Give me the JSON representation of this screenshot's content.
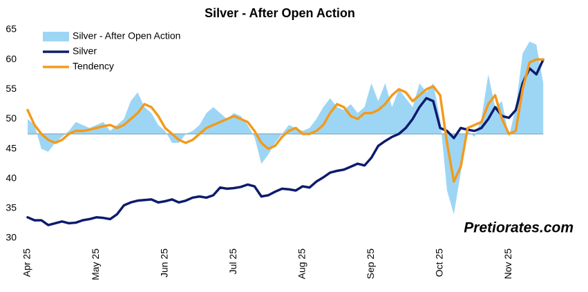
{
  "chart_data": {
    "type": "line",
    "title": "Silver - After Open Action",
    "annotation": "Pretiorates.com",
    "categories": [
      "Apr 25",
      null,
      null,
      null,
      null,
      null,
      null,
      null,
      null,
      null,
      "May 25",
      null,
      null,
      null,
      null,
      null,
      null,
      null,
      null,
      null,
      "Jun 25",
      null,
      null,
      null,
      null,
      null,
      null,
      null,
      null,
      null,
      "Jul 25",
      null,
      null,
      null,
      null,
      null,
      null,
      null,
      null,
      null,
      "Aug 25",
      null,
      null,
      null,
      null,
      null,
      null,
      null,
      null,
      null,
      "Sep 25",
      null,
      null,
      null,
      null,
      null,
      null,
      null,
      null,
      null,
      "Oct 25",
      null,
      null,
      null,
      null,
      null,
      null,
      null,
      null,
      null,
      "Nov 25",
      null,
      null,
      null,
      null,
      null
    ],
    "ylim": [
      30,
      65
    ],
    "yticks": [
      30,
      35,
      40,
      45,
      50,
      55,
      60,
      65
    ],
    "legend": "top-left",
    "series": [
      {
        "name": "Silver - After Open Action",
        "kind": "area",
        "baseline": 47.5,
        "color": "#9dd6f5",
        "values": [
          50,
          49,
          45,
          44.5,
          46,
          47,
          48,
          49.5,
          49,
          48.5,
          49,
          49.5,
          48,
          49,
          50,
          53,
          54.5,
          52,
          51,
          49,
          48,
          46,
          46,
          47.5,
          48,
          49,
          51,
          52,
          51,
          50,
          51,
          50.5,
          49,
          47,
          42.5,
          44,
          46,
          47.5,
          49,
          48.5,
          48,
          48.5,
          50,
          52,
          53.5,
          52,
          51.5,
          52.5,
          51,
          52,
          56,
          53,
          56,
          52,
          55,
          53.5,
          52,
          56,
          54.5,
          56,
          50,
          38,
          34,
          41,
          48,
          47,
          50,
          57.5,
          52,
          53,
          47,
          52,
          61,
          63,
          62.5,
          56
        ]
      },
      {
        "name": "Silver",
        "kind": "line",
        "color": "#0d1b6e",
        "values": [
          33.5,
          33,
          33,
          32.2,
          32.5,
          32.8,
          32.5,
          32.6,
          33,
          33.2,
          33.5,
          33.4,
          33.2,
          34,
          35.5,
          36,
          36.3,
          36.4,
          36.5,
          36,
          36.2,
          36.5,
          36,
          36.3,
          36.8,
          37,
          36.8,
          37.2,
          38.5,
          38.3,
          38.4,
          38.6,
          39,
          38.7,
          37,
          37.2,
          37.8,
          38.3,
          38.2,
          38,
          38.7,
          38.5,
          39.5,
          40.2,
          41,
          41.3,
          41.5,
          42,
          42.5,
          42.2,
          43.5,
          45.5,
          46.3,
          47,
          47.5,
          48.5,
          50,
          52,
          53.5,
          53,
          48.5,
          48,
          46.8,
          48.5,
          48.2,
          48,
          48.5,
          50,
          52,
          50.5,
          50.2,
          51.5,
          56,
          58.5,
          57.5,
          60
        ]
      },
      {
        "name": "Tendency",
        "kind": "line",
        "color": "#f39a1b",
        "values": [
          51.5,
          49,
          47.5,
          46.5,
          46,
          46.5,
          47.5,
          48,
          48,
          48.2,
          48.5,
          48.8,
          49,
          48.5,
          49,
          50,
          51,
          52.5,
          52,
          50.5,
          48.5,
          47.5,
          46.5,
          46,
          46.5,
          47.5,
          48.5,
          49,
          49.5,
          50,
          50.5,
          50,
          49.5,
          48,
          46,
          45,
          45.5,
          47,
          48,
          48.5,
          47.5,
          47.5,
          48,
          49,
          51,
          52.5,
          52,
          50.5,
          50,
          51,
          51,
          51.5,
          52.5,
          54,
          55,
          54.5,
          53,
          54,
          55,
          55.5,
          54,
          46,
          39.5,
          42,
          48.5,
          49,
          49.5,
          52.5,
          54,
          50,
          47.5,
          48,
          55,
          59.5,
          60,
          60
        ]
      }
    ]
  }
}
